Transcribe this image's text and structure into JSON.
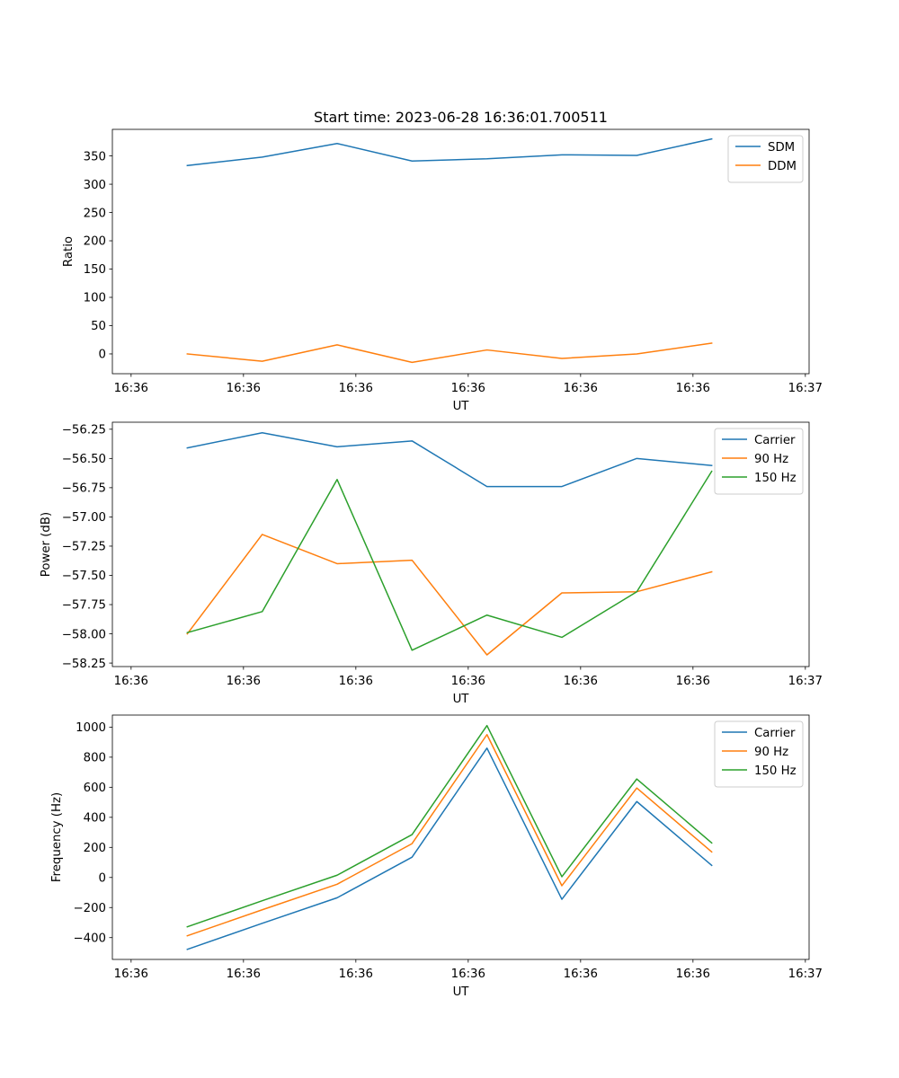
{
  "figure_title": "Start time: 2023-06-28 16:36:01.700511",
  "chart_data": [
    {
      "type": "line",
      "title": "Start time: 2023-06-28 16:36:01.700511",
      "xlabel": "UT",
      "ylabel": "Ratio",
      "x": [
        1,
        2,
        3,
        4,
        5,
        6,
        7,
        8
      ],
      "x_tick_values": [
        0.25,
        1.75,
        3.25,
        4.75,
        6.25,
        7.75,
        9.25
      ],
      "x_tick_labels": [
        "16:36",
        "16:36",
        "16:36",
        "16:36",
        "16:36",
        "16:36",
        "16:37"
      ],
      "xlim": [
        0.0,
        9.3
      ],
      "ylim": [
        -35,
        397
      ],
      "y_ticks": [
        0,
        50,
        100,
        150,
        200,
        250,
        300,
        350
      ],
      "y_tick_labels": [
        "0",
        "50",
        "100",
        "150",
        "200",
        "250",
        "300",
        "350"
      ],
      "grid": false,
      "legend_position": "upper right",
      "series": [
        {
          "name": "SDM",
          "color": "#1f77b4",
          "values": [
            333,
            348,
            372,
            341,
            345,
            352,
            351,
            380
          ]
        },
        {
          "name": "DDM",
          "color": "#ff7f0e",
          "values": [
            0,
            -13,
            16,
            -15,
            7,
            -8,
            0,
            19
          ]
        }
      ]
    },
    {
      "type": "line",
      "title": "",
      "xlabel": "UT",
      "ylabel": "Power (dB)",
      "x": [
        1,
        2,
        3,
        4,
        5,
        6,
        7,
        8
      ],
      "x_tick_values": [
        0.25,
        1.75,
        3.25,
        4.75,
        6.25,
        7.75,
        9.25
      ],
      "x_tick_labels": [
        "16:36",
        "16:36",
        "16:36",
        "16:36",
        "16:36",
        "16:36",
        "16:37"
      ],
      "xlim": [
        0.0,
        9.3
      ],
      "ylim": [
        -58.28,
        -56.19
      ],
      "y_ticks": [
        -58.25,
        -58.0,
        -57.75,
        -57.5,
        -57.25,
        -57.0,
        -56.75,
        -56.5,
        -56.25
      ],
      "y_tick_labels": [
        "−58.25",
        "−58.00",
        "−57.75",
        "−57.50",
        "−57.25",
        "−57.00",
        "−56.75",
        "−56.50",
        "−56.25"
      ],
      "grid": false,
      "legend_position": "upper right",
      "series": [
        {
          "name": "Carrier",
          "color": "#1f77b4",
          "values": [
            -56.41,
            -56.28,
            -56.4,
            -56.35,
            -56.74,
            -56.74,
            -56.5,
            -56.56
          ]
        },
        {
          "name": "90 Hz",
          "color": "#ff7f0e",
          "values": [
            -58.0,
            -57.15,
            -57.4,
            -57.37,
            -58.18,
            -57.65,
            -57.64,
            -57.47
          ]
        },
        {
          "name": "150 Hz",
          "color": "#2ca02c",
          "values": [
            -57.99,
            -57.81,
            -56.68,
            -58.14,
            -57.84,
            -58.03,
            -57.64,
            -56.61
          ]
        }
      ]
    },
    {
      "type": "line",
      "title": "",
      "xlabel": "UT",
      "ylabel": "Frequency (Hz)",
      "x": [
        1,
        2,
        3,
        4,
        5,
        6,
        7,
        8
      ],
      "x_tick_values": [
        0.25,
        1.75,
        3.25,
        4.75,
        6.25,
        7.75,
        9.25
      ],
      "x_tick_labels": [
        "16:36",
        "16:36",
        "16:36",
        "16:36",
        "16:36",
        "16:36",
        "16:37"
      ],
      "xlim": [
        0.0,
        9.3
      ],
      "ylim": [
        -545,
        1080
      ],
      "y_ticks": [
        -400,
        -200,
        0,
        200,
        400,
        600,
        800,
        1000
      ],
      "y_tick_labels": [
        "−400",
        "−200",
        "0",
        "200",
        "400",
        "600",
        "800",
        "1000"
      ],
      "grid": false,
      "legend_position": "upper right",
      "series": [
        {
          "name": "Carrier",
          "color": "#1f77b4",
          "values": [
            -478,
            -305,
            -135,
            135,
            860,
            -145,
            505,
            80
          ]
        },
        {
          "name": "90 Hz",
          "color": "#ff7f0e",
          "values": [
            -388,
            -215,
            -45,
            225,
            950,
            -55,
            595,
            170
          ]
        },
        {
          "name": "150 Hz",
          "color": "#2ca02c",
          "values": [
            -328,
            -155,
            15,
            285,
            1010,
            5,
            655,
            230
          ]
        }
      ]
    }
  ]
}
